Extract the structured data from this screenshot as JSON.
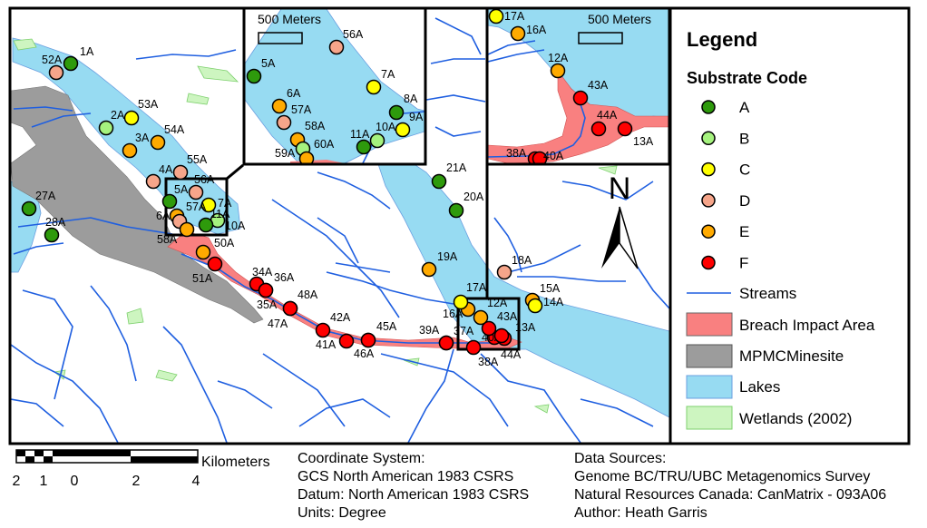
{
  "legend": {
    "title": "Legend",
    "substrate_title": "Substrate Code",
    "codes": [
      {
        "code": "A",
        "color": "#2e9a0c"
      },
      {
        "code": "B",
        "color": "#a5f27e"
      },
      {
        "code": "C",
        "color": "#ffff00"
      },
      {
        "code": "D",
        "color": "#f6a58a"
      },
      {
        "code": "E",
        "color": "#ffaa00"
      },
      {
        "code": "F",
        "color": "#ff0000"
      }
    ],
    "layers": [
      {
        "label": "Streams",
        "color": "#1f5fe0"
      },
      {
        "label": "Breach Impact Area",
        "color": "#f98080"
      },
      {
        "label": "MPMCMinesite",
        "color": "#9c9c9c"
      },
      {
        "label": "Lakes",
        "color": "#97dbf2"
      },
      {
        "label": "Wetlands (2002)",
        "color": "#cdf5c0"
      }
    ]
  },
  "north_arrow": "N",
  "insets": [
    {
      "scale_label": "500 Meters"
    },
    {
      "scale_label": "500 Meters"
    }
  ],
  "scale_bar": {
    "unit": "Kilometers",
    "ticks": [
      "2",
      "1",
      "0",
      "2",
      "4"
    ]
  },
  "coordinate_info": [
    "Coordinate System:",
    "GCS North American 1983 CSRS",
    "Datum: North American 1983 CSRS",
    "Units: Degree"
  ],
  "data_sources": [
    "Data Sources:",
    "Genome BC/TRU/UBC Metagenomics Survey",
    "Natural Resources Canada: CanMatrix - 093A06",
    "Author: Heath Garris"
  ],
  "sites_main": [
    {
      "label": "1A",
      "code": "A"
    },
    {
      "label": "52A",
      "code": "D"
    },
    {
      "label": "53A",
      "code": "C"
    },
    {
      "label": "2A",
      "code": "B"
    },
    {
      "label": "54A",
      "code": "E"
    },
    {
      "label": "3A",
      "code": "E"
    },
    {
      "label": "55A",
      "code": "D"
    },
    {
      "label": "4A",
      "code": "D"
    },
    {
      "label": "56A",
      "code": "D"
    },
    {
      "label": "5A",
      "code": "A"
    },
    {
      "label": "7A",
      "code": "C"
    },
    {
      "label": "6A",
      "code": "E"
    },
    {
      "label": "57A",
      "code": "D"
    },
    {
      "label": "58A",
      "code": "E"
    },
    {
      "label": "10A",
      "code": "B"
    },
    {
      "label": "11A",
      "code": "A"
    },
    {
      "label": "27A",
      "code": "A"
    },
    {
      "label": "28A",
      "code": "A"
    },
    {
      "label": "50A",
      "code": "E"
    },
    {
      "label": "51A",
      "code": "F"
    },
    {
      "label": "34A",
      "code": "F"
    },
    {
      "label": "36A",
      "code": "F"
    },
    {
      "label": "35A",
      "code": "F"
    },
    {
      "label": "48A",
      "code": "F"
    },
    {
      "label": "47A",
      "code": "F"
    },
    {
      "label": "42A",
      "code": "F"
    },
    {
      "label": "41A",
      "code": "F"
    },
    {
      "label": "46A",
      "code": "F"
    },
    {
      "label": "45A",
      "code": "F"
    },
    {
      "label": "39A",
      "code": "F"
    },
    {
      "label": "37A",
      "code": "F"
    },
    {
      "label": "38A",
      "code": "F"
    },
    {
      "label": "40A",
      "code": "F"
    },
    {
      "label": "44A",
      "code": "F"
    },
    {
      "label": "43A",
      "code": "F"
    },
    {
      "label": "13A",
      "code": "F"
    },
    {
      "label": "12A",
      "code": "E"
    },
    {
      "label": "16A",
      "code": "E"
    },
    {
      "label": "17A",
      "code": "C"
    },
    {
      "label": "18A",
      "code": "D"
    },
    {
      "label": "19A",
      "code": "E"
    },
    {
      "label": "15A",
      "code": "E"
    },
    {
      "label": "14A",
      "code": "C"
    },
    {
      "label": "20A",
      "code": "A"
    },
    {
      "label": "21A",
      "code": "A"
    }
  ],
  "sites_inset1": [
    {
      "label": "56A",
      "code": "D"
    },
    {
      "label": "5A",
      "code": "A"
    },
    {
      "label": "7A",
      "code": "C"
    },
    {
      "label": "8A",
      "code": "A"
    },
    {
      "label": "9A",
      "code": "C"
    },
    {
      "label": "6A",
      "code": "E"
    },
    {
      "label": "57A",
      "code": "D"
    },
    {
      "label": "58A",
      "code": "E"
    },
    {
      "label": "10A",
      "code": "B"
    },
    {
      "label": "11A",
      "code": "A"
    },
    {
      "label": "60A",
      "code": "B"
    },
    {
      "label": "59A",
      "code": "E"
    }
  ],
  "sites_inset2": [
    {
      "label": "17A",
      "code": "C"
    },
    {
      "label": "16A",
      "code": "E"
    },
    {
      "label": "12A",
      "code": "E"
    },
    {
      "label": "43A",
      "code": "F"
    },
    {
      "label": "44A",
      "code": "F"
    },
    {
      "label": "13A",
      "code": "F"
    },
    {
      "label": "38A",
      "code": "F"
    },
    {
      "label": "40A",
      "code": "F"
    }
  ]
}
